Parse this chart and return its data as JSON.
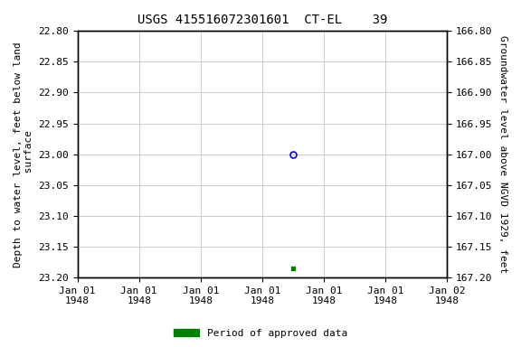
{
  "title": "USGS 415516072301601  CT-EL    39",
  "ylabel_left": "Depth to water level, feet below land\n surface",
  "ylabel_right": "Groundwater level above NGVD 1929, feet",
  "ylim_left": [
    22.8,
    23.2
  ],
  "ylim_right": [
    167.2,
    166.8
  ],
  "yticks_left": [
    22.8,
    22.85,
    22.9,
    22.95,
    23.0,
    23.05,
    23.1,
    23.15,
    23.2
  ],
  "yticks_right": [
    167.2,
    167.15,
    167.1,
    167.05,
    167.0,
    166.95,
    166.9,
    166.85,
    166.8
  ],
  "data_open_circle": {
    "x_pos": 3.5,
    "value": 23.0
  },
  "data_filled_square": {
    "x_pos": 3.5,
    "value": 23.185
  },
  "x_tick_labels": [
    "Jan 01\n1948",
    "Jan 01\n1948",
    "Jan 01\n1948",
    "Jan 01\n1948",
    "Jan 01\n1948",
    "Jan 01\n1948",
    "Jan 02\n1948"
  ],
  "xlim": [
    0,
    6
  ],
  "xticks": [
    0,
    1,
    2,
    3,
    4,
    5,
    6
  ],
  "bg_color": "#ffffff",
  "grid_color": "#cccccc",
  "open_circle_color": "blue",
  "filled_square_color": "green",
  "legend_label": "Period of approved data",
  "legend_color": "green",
  "title_fontsize": 10,
  "axis_label_fontsize": 8,
  "tick_fontsize": 8,
  "font_family": "monospace"
}
